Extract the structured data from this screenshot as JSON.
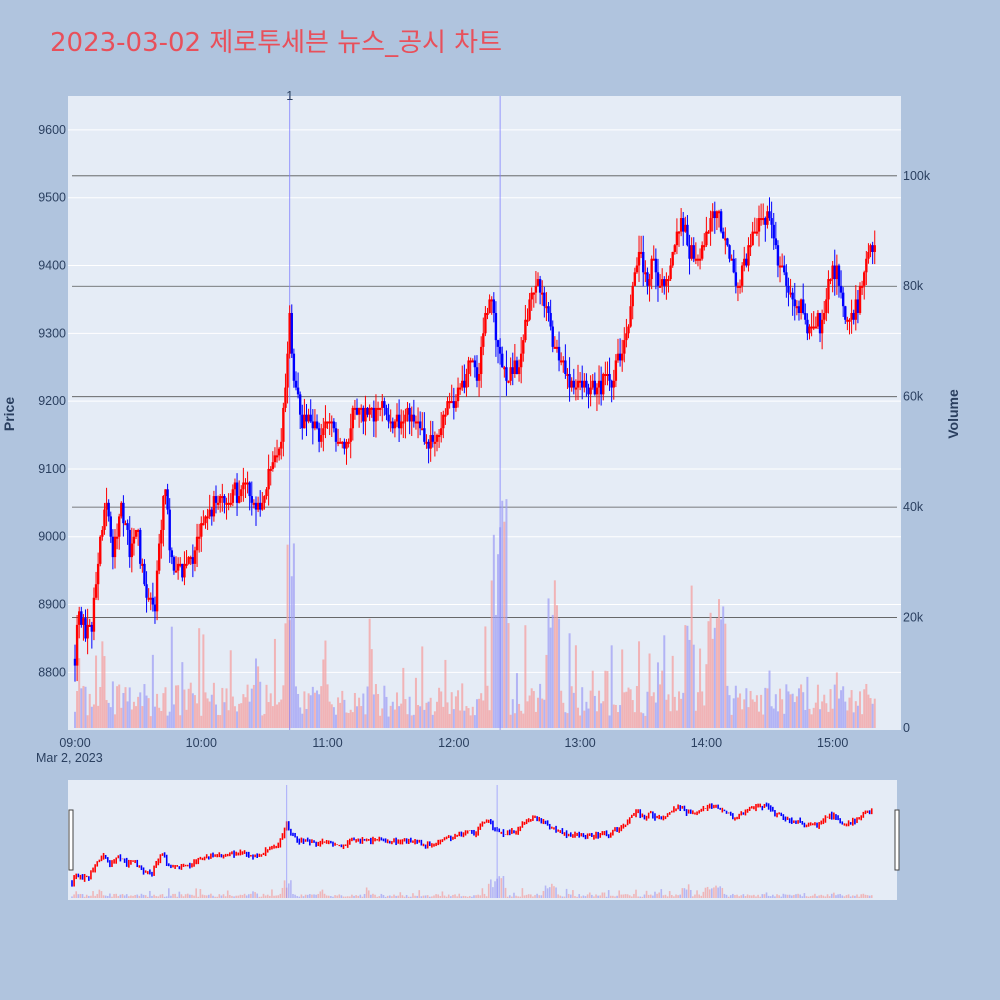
{
  "title": "2023-03-02 제로투세븐 뉴스_공시 차트",
  "colors": {
    "background": "#b0c4de",
    "plot_bg": "#e5ecf6",
    "up": "#ff0000",
    "down": "#0000ff",
    "up_volume": "#f4a0a0",
    "down_volume": "#a0a0f4",
    "title": "#e8505b",
    "news_line": "#8080ff",
    "grid": "#ffffff",
    "hline": "#555555"
  },
  "chart_data": {
    "type": "candlestick",
    "title": "2023-03-02 제로투세븐 뉴스_공시 차트",
    "date_label": "Mar 2, 2023",
    "x_ticks": [
      "09:00",
      "10:00",
      "11:00",
      "12:00",
      "13:00",
      "14:00",
      "15:00"
    ],
    "y_ticks": [
      "8800",
      "8900",
      "9000",
      "9100",
      "9200",
      "9300",
      "9400",
      "9500",
      "9600"
    ],
    "y2_ticks": [
      "0",
      "20k",
      "40k",
      "60k",
      "80k",
      "100k"
    ],
    "ylabel": "Price",
    "y2label": "Volume",
    "ylim": [
      8715,
      9650
    ],
    "y2lim": [
      0,
      113000
    ],
    "xlim": [
      "09:00",
      "15:32"
    ],
    "grid": true,
    "news_markers": [
      {
        "time": "10:42",
        "label": "1"
      },
      {
        "time": "12:22",
        "label": ""
      }
    ],
    "volume_hlines": [
      20000,
      40000,
      60000,
      80000,
      100000
    ],
    "anchors": [
      [
        "09:00",
        8820
      ],
      [
        "09:02",
        8900
      ],
      [
        "09:05",
        8850
      ],
      [
        "09:08",
        8870
      ],
      [
        "09:12",
        9000
      ],
      [
        "09:15",
        9050
      ],
      [
        "09:18",
        8980
      ],
      [
        "09:22",
        9050
      ],
      [
        "09:26",
        8980
      ],
      [
        "09:30",
        9000
      ],
      [
        "09:33",
        8930
      ],
      [
        "09:36",
        8900
      ],
      [
        "09:38",
        8880
      ],
      [
        "09:40",
        9000
      ],
      [
        "09:43",
        9080
      ],
      [
        "09:45",
        8980
      ],
      [
        "09:48",
        8950
      ],
      [
        "09:52",
        8960
      ],
      [
        "09:57",
        8980
      ],
      [
        "10:00",
        9010
      ],
      [
        "10:05",
        9040
      ],
      [
        "10:10",
        9060
      ],
      [
        "10:15",
        9060
      ],
      [
        "10:20",
        9080
      ],
      [
        "10:25",
        9050
      ],
      [
        "10:30",
        9060
      ],
      [
        "10:35",
        9120
      ],
      [
        "10:38",
        9150
      ],
      [
        "10:40",
        9220
      ],
      [
        "10:42",
        9340
      ],
      [
        "10:44",
        9220
      ],
      [
        "10:48",
        9170
      ],
      [
        "10:52",
        9160
      ],
      [
        "10:56",
        9150
      ],
      [
        "11:00",
        9170
      ],
      [
        "11:05",
        9150
      ],
      [
        "11:10",
        9140
      ],
      [
        "11:12",
        9200
      ],
      [
        "11:15",
        9180
      ],
      [
        "11:20",
        9180
      ],
      [
        "11:25",
        9190
      ],
      [
        "11:30",
        9170
      ],
      [
        "11:35",
        9170
      ],
      [
        "11:40",
        9190
      ],
      [
        "11:45",
        9150
      ],
      [
        "11:50",
        9140
      ],
      [
        "11:55",
        9180
      ],
      [
        "12:00",
        9200
      ],
      [
        "12:05",
        9230
      ],
      [
        "12:08",
        9260
      ],
      [
        "12:12",
        9240
      ],
      [
        "12:15",
        9320
      ],
      [
        "12:18",
        9350
      ],
      [
        "12:20",
        9280
      ],
      [
        "12:22",
        9260
      ],
      [
        "12:25",
        9220
      ],
      [
        "12:28",
        9250
      ],
      [
        "12:32",
        9260
      ],
      [
        "12:35",
        9330
      ],
      [
        "12:40",
        9380
      ],
      [
        "12:43",
        9350
      ],
      [
        "12:46",
        9300
      ],
      [
        "12:50",
        9260
      ],
      [
        "12:55",
        9230
      ],
      [
        "13:00",
        9230
      ],
      [
        "13:05",
        9220
      ],
      [
        "13:10",
        9225
      ],
      [
        "13:15",
        9230
      ],
      [
        "13:18",
        9260
      ],
      [
        "13:22",
        9300
      ],
      [
        "13:25",
        9360
      ],
      [
        "13:28",
        9420
      ],
      [
        "13:32",
        9380
      ],
      [
        "13:35",
        9400
      ],
      [
        "13:38",
        9370
      ],
      [
        "13:42",
        9380
      ],
      [
        "13:45",
        9420
      ],
      [
        "13:48",
        9470
      ],
      [
        "13:52",
        9420
      ],
      [
        "13:56",
        9400
      ],
      [
        "14:00",
        9450
      ],
      [
        "14:05",
        9490
      ],
      [
        "14:08",
        9440
      ],
      [
        "14:12",
        9400
      ],
      [
        "14:15",
        9370
      ],
      [
        "14:18",
        9410
      ],
      [
        "14:22",
        9440
      ],
      [
        "14:25",
        9460
      ],
      [
        "14:30",
        9480
      ],
      [
        "14:33",
        9430
      ],
      [
        "14:35",
        9400
      ],
      [
        "14:38",
        9370
      ],
      [
        "14:42",
        9330
      ],
      [
        "14:45",
        9350
      ],
      [
        "14:48",
        9300
      ],
      [
        "14:52",
        9310
      ],
      [
        "14:55",
        9320
      ],
      [
        "14:58",
        9380
      ],
      [
        "15:02",
        9400
      ],
      [
        "15:05",
        9340
      ],
      [
        "15:08",
        9320
      ],
      [
        "15:12",
        9340
      ],
      [
        "15:15",
        9400
      ],
      [
        "15:18",
        9440
      ],
      [
        "15:20",
        9430
      ]
    ]
  }
}
